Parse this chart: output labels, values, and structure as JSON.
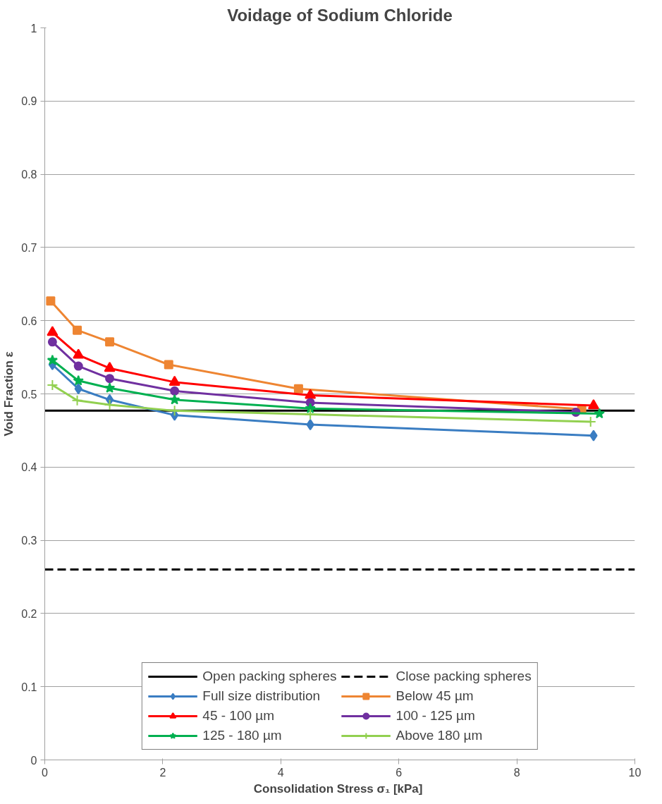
{
  "chart_data": {
    "type": "line",
    "title": "Voidage of Sodium Chloride",
    "xlabel": "Consolidation  Stress σ₁ [kPa]",
    "ylabel": "Void Fraction ε",
    "xlim": [
      0,
      10
    ],
    "xticks": [
      0,
      2,
      4,
      6,
      8,
      10
    ],
    "ylim": [
      0,
      1
    ],
    "yticks": [
      {
        "value": 0,
        "label": "0"
      },
      0.1,
      0.2,
      0.3,
      0.4,
      0.5,
      0.6,
      0.7,
      0.8,
      0.9,
      {
        "value": 1,
        "label": "1"
      }
    ],
    "grid": "y",
    "legend": "bottom",
    "ref_lines": [
      {
        "axis": "y",
        "value": 0.477,
        "label": "Open packing spheres",
        "color": "#000000",
        "line_style": "solid"
      },
      {
        "axis": "y",
        "value": 0.26,
        "label": "Close packing spheres",
        "color": "#000000",
        "line_style": "dashed"
      }
    ],
    "series": [
      {
        "name": "Full size distribution",
        "color": "#3a7dc2",
        "marker": "diamond",
        "x": [
          0.13,
          0.57,
          1.1,
          2.2,
          4.5,
          9.3
        ],
        "values": [
          0.54,
          0.507,
          0.492,
          0.471,
          0.458,
          0.443
        ]
      },
      {
        "name": "Below 45 µm",
        "color": "#ee8532",
        "marker": "square",
        "x": [
          0.1,
          0.55,
          1.1,
          2.1,
          4.3,
          9.1
        ],
        "values": [
          0.627,
          0.587,
          0.571,
          0.54,
          0.507,
          0.479
        ]
      },
      {
        "name": "45 - 100 µm",
        "color": "#ff0000",
        "marker": "triangle",
        "x": [
          0.13,
          0.57,
          1.1,
          2.2,
          4.5,
          9.3
        ],
        "values": [
          0.584,
          0.553,
          0.535,
          0.516,
          0.498,
          0.484
        ]
      },
      {
        "name": "100 - 125 µm",
        "color": "#7030a0",
        "marker": "circle",
        "x": [
          0.13,
          0.57,
          1.1,
          2.2,
          4.5,
          9.0
        ],
        "values": [
          0.571,
          0.538,
          0.521,
          0.504,
          0.488,
          0.475
        ]
      },
      {
        "name": "125 - 180 µm",
        "color": "#00b050",
        "marker": "star",
        "x": [
          0.13,
          0.57,
          1.1,
          2.2,
          4.5,
          9.4
        ],
        "values": [
          0.546,
          0.518,
          0.508,
          0.492,
          0.48,
          0.473
        ]
      },
      {
        "name": "Above 180 µm",
        "color": "#92d050",
        "marker": "cross",
        "x": [
          0.13,
          0.55,
          1.1,
          2.2,
          4.5,
          9.25
        ],
        "values": [
          0.512,
          0.491,
          0.485,
          0.477,
          0.472,
          0.462
        ]
      }
    ]
  }
}
